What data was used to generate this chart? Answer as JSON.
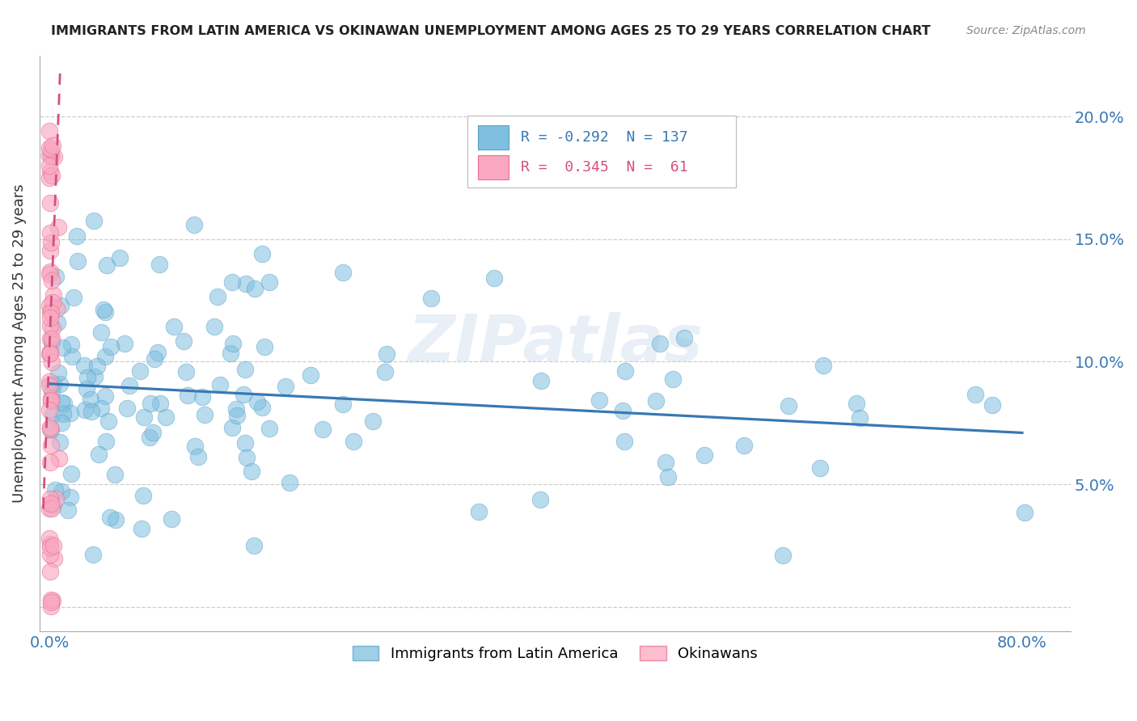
{
  "title": "IMMIGRANTS FROM LATIN AMERICA VS OKINAWAN UNEMPLOYMENT AMONG AGES 25 TO 29 YEARS CORRELATION CHART",
  "source": "Source: ZipAtlas.com",
  "ylabel": "Unemployment Among Ages 25 to 29 years",
  "xlim": [
    -0.008,
    0.84
  ],
  "ylim": [
    -0.01,
    0.225
  ],
  "xticks": [
    0.0,
    0.8
  ],
  "xticklabels": [
    "0.0%",
    "80.0%"
  ],
  "yticks": [
    0.0,
    0.05,
    0.1,
    0.15,
    0.2
  ],
  "yticklabels": [
    "",
    "5.0%",
    "10.0%",
    "15.0%",
    "20.0%"
  ],
  "R_blue": -0.292,
  "N_blue": 137,
  "R_pink": 0.345,
  "N_pink": 61,
  "blue_color": "#7fbfdf",
  "blue_edge_color": "#5aa0c8",
  "blue_line_color": "#3878b4",
  "pink_color": "#f9a8c0",
  "pink_edge_color": "#e87090",
  "pink_line_color": "#d45080",
  "watermark": "ZIPatlas",
  "legend_blue": "Immigrants from Latin America",
  "legend_pink": "Okinawans",
  "blue_line_x": [
    0.0,
    0.8
  ],
  "blue_line_y": [
    0.091,
    0.071
  ],
  "pink_line_x": [
    -0.005,
    0.009
  ],
  "pink_line_y": [
    0.04,
    0.22
  ]
}
